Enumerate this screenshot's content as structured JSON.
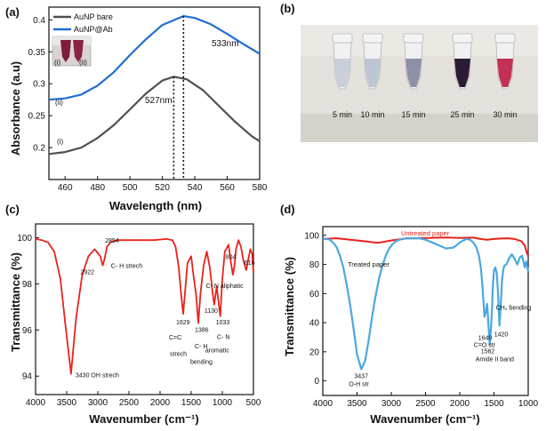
{
  "panels": {
    "a": "(a)",
    "b": "(b)",
    "c": "(c)",
    "d": "(d)"
  },
  "colors": {
    "bare": "#505050",
    "ab": "#1f6fd1",
    "ftir_c": "#e8221b",
    "untreated": "#e8221b",
    "treated": "#4aa8e0"
  },
  "photo_b": {
    "labels": [
      "5 min",
      "10 min",
      "15 min",
      "25 min",
      "30 min"
    ],
    "tube_colors": [
      "#c9d0dc",
      "#bcc6d2",
      "#8f8fa8",
      "#2b1b34",
      "#c23054"
    ]
  },
  "inset_a": {
    "labels": [
      "(i)",
      "(ii)"
    ]
  },
  "chart_data": [
    {
      "id": "a",
      "type": "line",
      "xlabel": "Wavelength (nm)",
      "ylabel": "Absorbance (a.u)",
      "xlim": [
        450,
        580
      ],
      "ylim": [
        0.15,
        0.42
      ],
      "xticks": [
        460,
        480,
        500,
        520,
        540,
        560,
        580
      ],
      "yticks": [
        0.2,
        0.25,
        0.3,
        0.35,
        0.4
      ],
      "legend": "top-left",
      "series": [
        {
          "name": "AuNP bare",
          "x": [
            450,
            460,
            470,
            480,
            490,
            500,
            510,
            520,
            527,
            535,
            545,
            555,
            565,
            575,
            580
          ],
          "y": [
            0.19,
            0.193,
            0.2,
            0.215,
            0.235,
            0.26,
            0.285,
            0.305,
            0.311,
            0.307,
            0.29,
            0.265,
            0.24,
            0.218,
            0.21
          ]
        },
        {
          "name": "AuNP@Ab",
          "x": [
            450,
            460,
            470,
            480,
            490,
            500,
            510,
            520,
            533,
            540,
            550,
            560,
            570,
            580
          ],
          "y": [
            0.275,
            0.277,
            0.283,
            0.297,
            0.318,
            0.345,
            0.37,
            0.392,
            0.406,
            0.403,
            0.393,
            0.378,
            0.362,
            0.347
          ]
        }
      ],
      "annotations": [
        {
          "text": "533nm",
          "x": 533,
          "y": 0.406
        },
        {
          "text": "527nm",
          "x": 527,
          "y": 0.311
        },
        {
          "text": "(i)",
          "series": "AuNP bare"
        },
        {
          "text": "(ii)",
          "series": "AuNP@Ab"
        }
      ]
    },
    {
      "id": "c",
      "type": "line",
      "xlabel": "Wavenumber (cm⁻¹)",
      "ylabel": "Transmittance (%)",
      "xlim": [
        4000,
        500
      ],
      "ylim": [
        93.2,
        100.6
      ],
      "xticks": [
        4000,
        3500,
        3000,
        2500,
        2000,
        1500,
        1000,
        500
      ],
      "yticks": [
        94,
        96,
        98,
        100
      ],
      "series": [
        {
          "name": "",
          "x": [
            4000,
            3900,
            3800,
            3700,
            3600,
            3520,
            3430,
            3350,
            3250,
            3150,
            3050,
            2960,
            2922,
            2890,
            2854,
            2800,
            2700,
            2500,
            2300,
            2100,
            1900,
            1800,
            1750,
            1700,
            1660,
            1629,
            1600,
            1560,
            1500,
            1460,
            1420,
            1386,
            1350,
            1300,
            1250,
            1200,
            1160,
            1130,
            1090,
            1060,
            1033,
            1000,
            960,
            900,
            860,
            830,
            804,
            780,
            740,
            700,
            660,
            616,
            580,
            550,
            520,
            500
          ],
          "y": [
            99.95,
            99.9,
            99.8,
            99.4,
            98.2,
            96.2,
            94.1,
            96.5,
            98.4,
            99.2,
            99.5,
            99.2,
            98.8,
            99.1,
            99.6,
            99.8,
            99.9,
            99.9,
            99.9,
            99.9,
            99.95,
            99.9,
            99.6,
            98.7,
            97.5,
            96.7,
            97.6,
            98.9,
            99.2,
            98.3,
            97.5,
            96.3,
            97.6,
            98.8,
            99.4,
            98.7,
            97.7,
            97.1,
            97.9,
            97.2,
            96.6,
            98.2,
            99.4,
            99.7,
            98.9,
            98.4,
            98.8,
            99.5,
            99.9,
            99.6,
            99.0,
            98.6,
            99.1,
            99.5,
            99.3,
            98.5
          ]
        }
      ],
      "annotations": [
        {
          "text": "3430  OH strech",
          "x": 3430,
          "y": 94.1
        },
        {
          "text": "2854",
          "x": 2854,
          "y": 99.6
        },
        {
          "text": "2922",
          "x": 2922,
          "y": 98.8
        },
        {
          "text": "C- H strech",
          "x": 2860,
          "y": 99.0
        },
        {
          "text": "1629",
          "x": 1629,
          "y": 96.7
        },
        {
          "text": "C=C",
          "x": 1700,
          "y": 96.4
        },
        {
          "text": "strech",
          "x": 1700,
          "y": 96.0
        },
        {
          "text": "1386",
          "x": 1386,
          "y": 96.3
        },
        {
          "text": "C- H",
          "x": 1400,
          "y": 95.9
        },
        {
          "text": "bending",
          "x": 1400,
          "y": 95.5
        },
        {
          "text": "C- N  aliphatic",
          "x": 1120,
          "y": 97.6
        },
        {
          "text": "1130",
          "x": 1130,
          "y": 97.1
        },
        {
          "text": "1033",
          "x": 1033,
          "y": 96.6
        },
        {
          "text": "C- N",
          "x": 1000,
          "y": 96.0
        },
        {
          "text": "aromatic",
          "x": 1030,
          "y": 95.6
        },
        {
          "text": "804",
          "x": 804,
          "y": 98.8
        },
        {
          "text": "616",
          "x": 616,
          "y": 98.6
        }
      ]
    },
    {
      "id": "d",
      "type": "line",
      "xlabel": "Wavenumber (cm⁻¹)",
      "ylabel": "Transmittance (%)",
      "xlim": [
        4000,
        1000
      ],
      "ylim": [
        -10,
        106
      ],
      "xticks": [
        4000,
        3500,
        3000,
        2500,
        2000,
        1500,
        1000
      ],
      "yticks": [
        0,
        20,
        40,
        60,
        80,
        100
      ],
      "series": [
        {
          "name": "Untreated paper",
          "x": [
            4000,
            3800,
            3600,
            3400,
            3200,
            3000,
            2800,
            2600,
            2400,
            2200,
            2000,
            1800,
            1700,
            1600,
            1500,
            1400,
            1300,
            1200,
            1100,
            1050,
            1020,
            1000
          ],
          "y": [
            97.5,
            98.0,
            97.0,
            96.0,
            94.8,
            96.5,
            97.8,
            98.0,
            98.3,
            98.5,
            98.2,
            98.4,
            97.5,
            97.0,
            97.5,
            97.8,
            98.0,
            97.5,
            96.0,
            93.0,
            88.0,
            86.0
          ]
        },
        {
          "name": "Treated paper",
          "x": [
            4000,
            3900,
            3850,
            3800,
            3750,
            3700,
            3650,
            3600,
            3550,
            3500,
            3437,
            3380,
            3330,
            3280,
            3230,
            3180,
            3130,
            3080,
            3030,
            2980,
            2930,
            2880,
            2830,
            2780,
            2700,
            2600,
            2500,
            2400,
            2300,
            2200,
            2100,
            2050,
            2000,
            1950,
            1900,
            1850,
            1800,
            1760,
            1720,
            1690,
            1670,
            1650,
            1640,
            1620,
            1600,
            1580,
            1562,
            1545,
            1530,
            1515,
            1500,
            1480,
            1460,
            1440,
            1430,
            1420,
            1410,
            1395,
            1380,
            1365,
            1350,
            1320,
            1280,
            1240,
            1200,
            1160,
            1120,
            1090,
            1070,
            1050,
            1030,
            1000
          ],
          "y": [
            98,
            97,
            95,
            92,
            86,
            78,
            66,
            52,
            36,
            18,
            8,
            14,
            28,
            44,
            58,
            70,
            79,
            86,
            91,
            94,
            96,
            97,
            97.5,
            98,
            98,
            98,
            97,
            95,
            93,
            91,
            91.5,
            93,
            95,
            96.5,
            97.5,
            97,
            95,
            92,
            86,
            77,
            66,
            52,
            44,
            47,
            53,
            38,
            25,
            35,
            48,
            66,
            76,
            78,
            74,
            60,
            48,
            38,
            45,
            58,
            70,
            76,
            79,
            80,
            84,
            87,
            84,
            80,
            85,
            86,
            82,
            78,
            82,
            75
          ]
        }
      ],
      "annotations": [
        {
          "text": "3437",
          "x": 3437,
          "y": 8
        },
        {
          "text": "O-H str",
          "x": 3437,
          "y": 8
        },
        {
          "text": "1640",
          "x": 1640,
          "y": 44
        },
        {
          "text": "C=O str",
          "x": 1640,
          "y": 44
        },
        {
          "text": "1562",
          "x": 1562,
          "y": 25
        },
        {
          "text": "Amide II band",
          "x": 1562,
          "y": 25
        },
        {
          "text": "1420",
          "x": 1420,
          "y": 38
        },
        {
          "text": "CH₂ bending",
          "x": 1420,
          "y": 44
        }
      ]
    }
  ]
}
